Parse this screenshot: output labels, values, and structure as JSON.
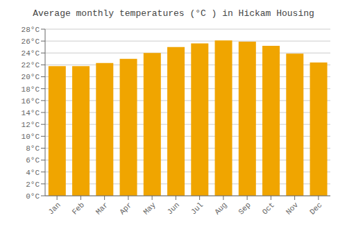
{
  "chart_data": {
    "type": "bar",
    "title": "Average monthly temperatures (°C ) in Hickam Housing",
    "categories": [
      "Jan",
      "Feb",
      "Mar",
      "Apr",
      "May",
      "Jun",
      "Jul",
      "Aug",
      "Sep",
      "Oct",
      "Nov",
      "Dec"
    ],
    "values": [
      21.8,
      21.8,
      22.3,
      23.0,
      24.0,
      25.0,
      25.6,
      26.1,
      25.9,
      25.2,
      23.9,
      22.4
    ],
    "color": "#F0A500",
    "ylim": [
      0,
      28
    ],
    "yticks": [
      {
        "value": 0,
        "label": "0°C"
      },
      {
        "value": 2,
        "label": "2°C"
      },
      {
        "value": 4,
        "label": "4°C"
      },
      {
        "value": 6,
        "label": "6°C"
      },
      {
        "value": 8,
        "label": "8°C"
      },
      {
        "value": 10,
        "label": "10°C"
      },
      {
        "value": 12,
        "label": "12°C"
      },
      {
        "value": 14,
        "label": "14°C"
      },
      {
        "value": 16,
        "label": "16°C"
      },
      {
        "value": 18,
        "label": "18°C"
      },
      {
        "value": 20,
        "label": "20°C"
      },
      {
        "value": 22,
        "label": "22°C"
      },
      {
        "value": 24,
        "label": "24°C"
      },
      {
        "value": 26,
        "label": "26°C"
      },
      {
        "value": 28,
        "label": "28°C"
      }
    ],
    "grid": true
  }
}
